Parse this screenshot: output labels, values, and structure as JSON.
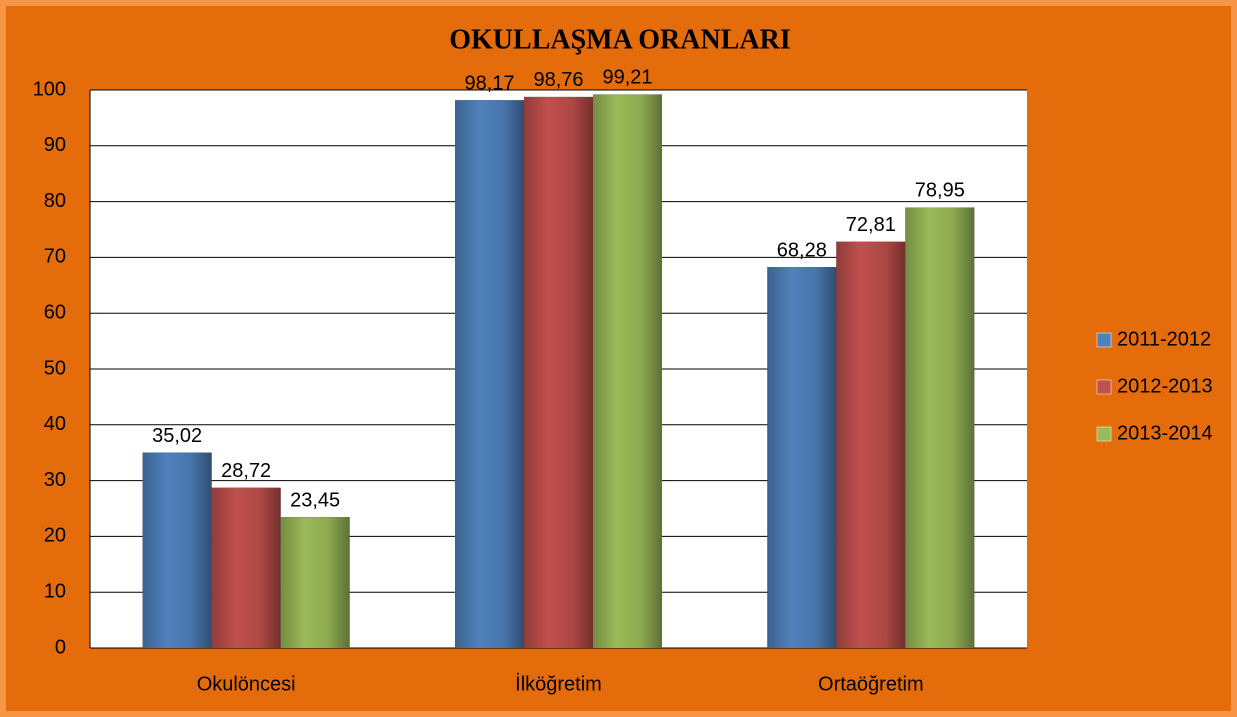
{
  "chart_data": {
    "type": "bar",
    "title": "OKULLAŞMA ORANLARI",
    "categories": [
      "Okulöncesi",
      "İlköğretim",
      "Ortaöğretim"
    ],
    "series": [
      {
        "name": "2011-2012",
        "color": "#4f81bd",
        "values": [
          35.02,
          98.17,
          68.28
        ],
        "value_labels": [
          "35,02",
          "98,17",
          "68,28"
        ]
      },
      {
        "name": "2012-2013",
        "color": "#c0504d",
        "values": [
          28.72,
          98.76,
          72.81
        ],
        "value_labels": [
          "28,72",
          "98,76",
          "72,81"
        ]
      },
      {
        "name": "2013-2014",
        "color": "#9bbb59",
        "values": [
          23.45,
          99.21,
          78.95
        ],
        "value_labels": [
          "23,45",
          "99,21",
          "78,95"
        ]
      }
    ],
    "ylim": [
      0,
      100
    ],
    "yticks": [
      0,
      10,
      20,
      30,
      40,
      50,
      60,
      70,
      80,
      90,
      100
    ],
    "grid": true,
    "legend": "right"
  }
}
